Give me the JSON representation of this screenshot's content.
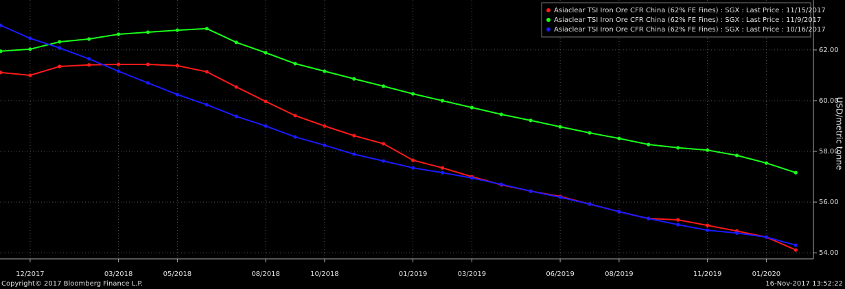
{
  "chart_data": {
    "type": "line",
    "categories": [
      null,
      "12/2017",
      null,
      null,
      "03/2018",
      null,
      "05/2018",
      null,
      null,
      "08/2018",
      null,
      "10/2018",
      null,
      null,
      "01/2019",
      null,
      "03/2019",
      null,
      null,
      "06/2019",
      null,
      "08/2019",
      null,
      null,
      "11/2019",
      null,
      "01/2020",
      null
    ],
    "series": [
      {
        "name": "Asiaclear TSI Iron Ore CFR China (62% FE Fines) : SGX : Last Price : 11/15/2017",
        "color": "#ff1a1a",
        "values": [
          61.11,
          61.0,
          61.35,
          61.41,
          61.43,
          61.43,
          61.38,
          61.14,
          60.54,
          59.97,
          59.41,
          59.0,
          58.62,
          58.3,
          57.65,
          57.35,
          57.0,
          56.68,
          56.43,
          56.22,
          55.92,
          55.62,
          55.35,
          55.3,
          55.08,
          54.86,
          54.62,
          54.11
        ]
      },
      {
        "name": "Asiaclear TSI Iron Ore CFR China (62% FE Fines) : SGX : Last Price : 11/9/2017",
        "color": "#1aff1a",
        "values": [
          61.95,
          62.03,
          62.32,
          62.43,
          62.62,
          62.7,
          62.78,
          62.84,
          62.3,
          61.89,
          61.46,
          61.16,
          60.86,
          60.57,
          60.27,
          60.0,
          59.73,
          59.46,
          59.22,
          58.97,
          58.73,
          58.51,
          58.27,
          58.14,
          58.05,
          57.84,
          57.54,
          57.16
        ]
      },
      {
        "name": "Asiaclear TSI Iron Ore CFR China (62% FE Fines) : SGX : Last Price : 10/16/2017",
        "color": "#1a1aff",
        "values": [
          62.97,
          62.46,
          62.08,
          61.65,
          61.16,
          60.7,
          60.24,
          59.84,
          59.38,
          59.0,
          58.57,
          58.24,
          57.89,
          57.62,
          57.35,
          57.16,
          56.95,
          56.7,
          56.43,
          56.19,
          55.92,
          55.62,
          55.35,
          55.11,
          54.89,
          54.78,
          54.62,
          54.3
        ]
      }
    ],
    "y_label": "USD/metric tonne",
    "ylim": [
      53.76,
      63.97
    ],
    "yticks": [
      {
        "value": 54,
        "label": "54.00"
      },
      {
        "value": 56,
        "label": "56.00"
      },
      {
        "value": 58,
        "label": "58.00"
      },
      {
        "value": 60,
        "label": "60.00"
      },
      {
        "value": 62,
        "label": "62.00"
      }
    ],
    "grid": true,
    "legend": "top-right",
    "copyright": "Copyright© 2017 Bloomberg Finance L.P.",
    "timestamp": "16-Nov-2017 13:52:22"
  }
}
